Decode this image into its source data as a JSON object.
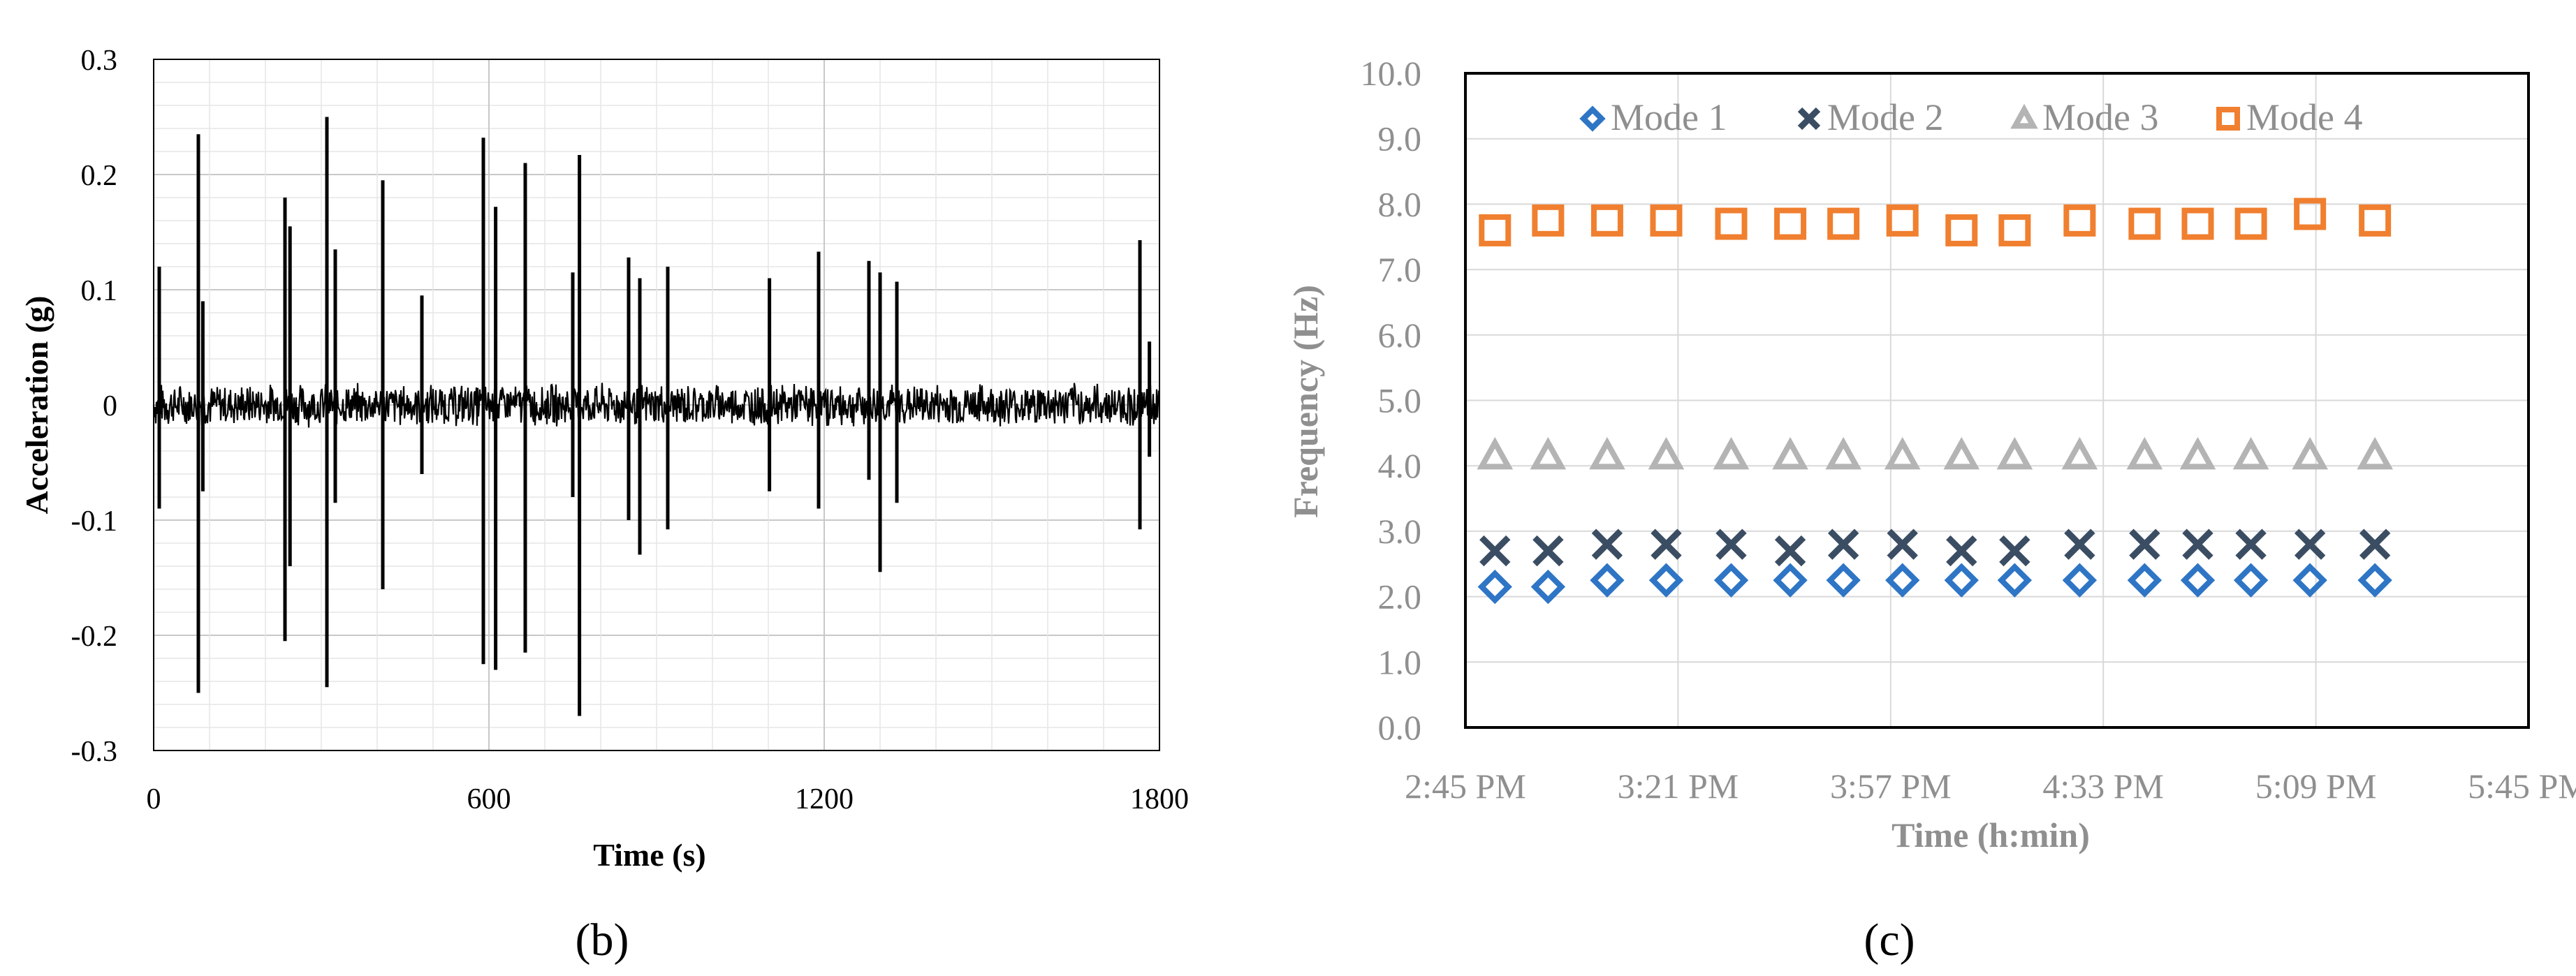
{
  "chart_data": [
    {
      "type": "line",
      "panel_label": "(b)",
      "xlabel": "Time (s)",
      "ylabel": "Acceleration (g)",
      "xlim": [
        0,
        1800
      ],
      "ylim": [
        -0.3,
        0.3
      ],
      "x_ticks": [
        "0",
        "600",
        "1200",
        "1800"
      ],
      "y_ticks": [
        "0.3",
        "0.2",
        "0.1",
        "0",
        "-0.1",
        "-0.2",
        "-0.3"
      ],
      "grid": true,
      "noise_band_g": 0.02,
      "color": "#000000",
      "spikes": [
        {
          "x": 10,
          "max": 0.12,
          "min": -0.09
        },
        {
          "x": 80,
          "max": 0.235,
          "min": -0.25
        },
        {
          "x": 88,
          "max": 0.09,
          "min": -0.075
        },
        {
          "x": 235,
          "max": 0.18,
          "min": -0.205
        },
        {
          "x": 244,
          "max": 0.155,
          "min": -0.14
        },
        {
          "x": 310,
          "max": 0.25,
          "min": -0.245
        },
        {
          "x": 325,
          "max": 0.135,
          "min": -0.085
        },
        {
          "x": 410,
          "max": 0.195,
          "min": -0.16
        },
        {
          "x": 480,
          "max": 0.095,
          "min": -0.06
        },
        {
          "x": 590,
          "max": 0.232,
          "min": -0.225
        },
        {
          "x": 612,
          "max": 0.172,
          "min": -0.23
        },
        {
          "x": 665,
          "max": 0.21,
          "min": -0.215
        },
        {
          "x": 750,
          "max": 0.115,
          "min": -0.08
        },
        {
          "x": 762,
          "max": 0.217,
          "min": -0.27
        },
        {
          "x": 850,
          "max": 0.128,
          "min": -0.1
        },
        {
          "x": 870,
          "max": 0.11,
          "min": -0.13
        },
        {
          "x": 920,
          "max": 0.12,
          "min": -0.108
        },
        {
          "x": 1102,
          "max": 0.11,
          "min": -0.075
        },
        {
          "x": 1190,
          "max": 0.133,
          "min": -0.09
        },
        {
          "x": 1280,
          "max": 0.125,
          "min": -0.065
        },
        {
          "x": 1300,
          "max": 0.115,
          "min": -0.145
        },
        {
          "x": 1330,
          "max": 0.107,
          "min": -0.085
        },
        {
          "x": 1765,
          "max": 0.143,
          "min": -0.108
        },
        {
          "x": 1782,
          "max": 0.055,
          "min": -0.045
        }
      ]
    },
    {
      "type": "scatter",
      "panel_label": "(c)",
      "xlabel": "Time (h:min)",
      "ylabel": "Frequency (Hz)",
      "x_ticks": [
        "2:45 PM",
        "3:21 PM",
        "3:57 PM",
        "4:33 PM",
        "5:09 PM",
        "5:45 PM"
      ],
      "x_tick_minutes": [
        0,
        36,
        72,
        108,
        144,
        180
      ],
      "ylim": [
        0,
        10
      ],
      "y_ticks": [
        "0.0",
        "1.0",
        "2.0",
        "3.0",
        "4.0",
        "5.0",
        "6.0",
        "7.0",
        "8.0",
        "9.0",
        "10.0"
      ],
      "grid": true,
      "legend_position": "top",
      "x_minutes": [
        5,
        14,
        24,
        34,
        45,
        55,
        64,
        74,
        84,
        93,
        104,
        115,
        124,
        133,
        143,
        154
      ],
      "series": [
        {
          "name": "Mode 1",
          "marker": "diamond",
          "color": "#2e75c5",
          "values": [
            2.15,
            2.15,
            2.25,
            2.25,
            2.25,
            2.25,
            2.25,
            2.25,
            2.25,
            2.25,
            2.25,
            2.25,
            2.25,
            2.25,
            2.25,
            2.25
          ]
        },
        {
          "name": "Mode 2",
          "marker": "x",
          "color": "#3b4d63",
          "values": [
            2.7,
            2.7,
            2.8,
            2.8,
            2.8,
            2.7,
            2.8,
            2.8,
            2.7,
            2.7,
            2.8,
            2.8,
            2.8,
            2.8,
            2.8,
            2.8
          ]
        },
        {
          "name": "Mode 3",
          "marker": "triangle",
          "color": "#b4b4b4",
          "values": [
            4.15,
            4.15,
            4.15,
            4.15,
            4.15,
            4.15,
            4.15,
            4.15,
            4.15,
            4.15,
            4.15,
            4.15,
            4.15,
            4.15,
            4.15,
            4.15
          ]
        },
        {
          "name": "Mode 4",
          "marker": "square",
          "color": "#f07f2f",
          "values": [
            7.6,
            7.75,
            7.75,
            7.75,
            7.7,
            7.7,
            7.7,
            7.75,
            7.6,
            7.6,
            7.75,
            7.7,
            7.7,
            7.7,
            7.85,
            7.75
          ]
        }
      ]
    }
  ]
}
